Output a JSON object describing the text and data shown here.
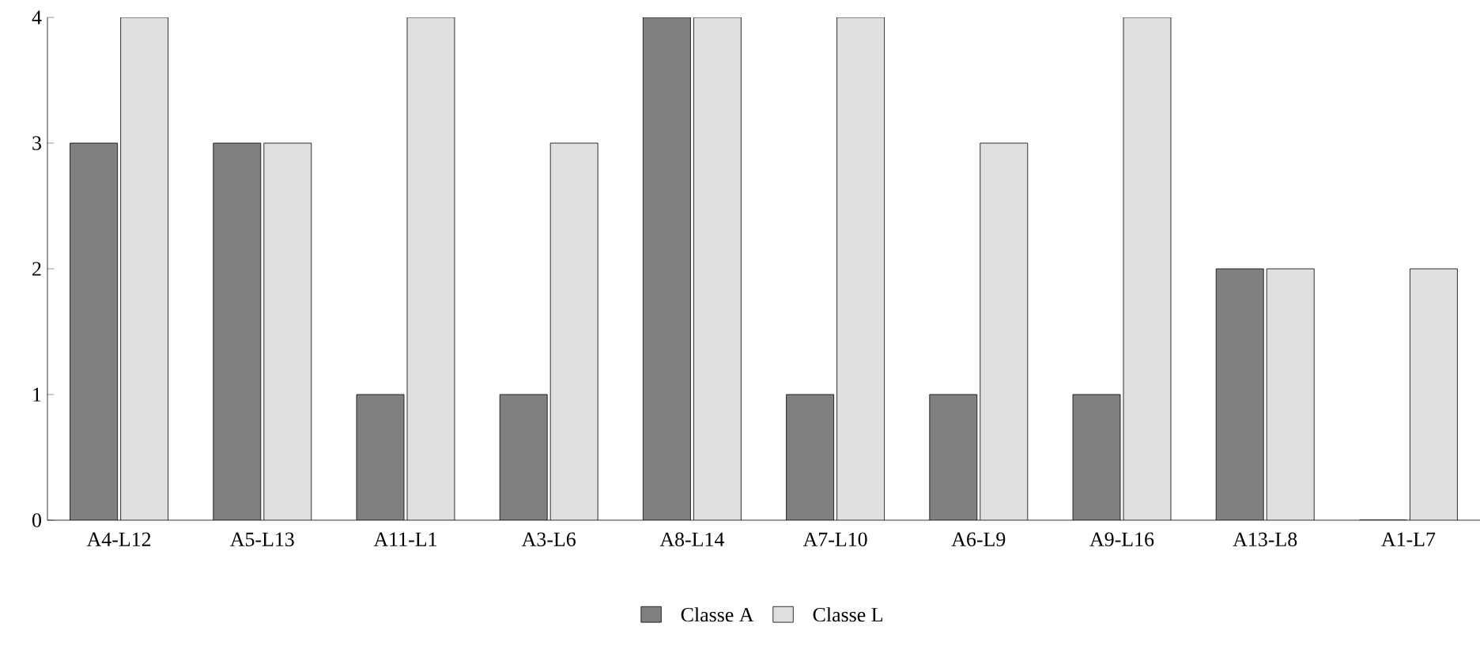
{
  "chart_data": {
    "type": "bar",
    "categories": [
      "A4-L12",
      "A5-L13",
      "A11-L1",
      "A3-L6",
      "A8-L14",
      "A7-L10",
      "A6-L9",
      "A9-L16",
      "A13-L8",
      "A1-L7"
    ],
    "series": [
      {
        "name": "Classe A",
        "color": "#808080",
        "values": [
          3,
          3,
          1,
          1,
          4,
          1,
          1,
          1,
          2,
          0
        ]
      },
      {
        "name": "Classe L",
        "color": "#e0e0e0",
        "values": [
          4,
          3,
          4,
          3,
          4,
          4,
          3,
          4,
          2,
          2
        ]
      }
    ],
    "ylim": [
      0,
      4
    ],
    "yticks": [
      0,
      1,
      2,
      3,
      4
    ],
    "grid": false,
    "legend": "bottom"
  }
}
